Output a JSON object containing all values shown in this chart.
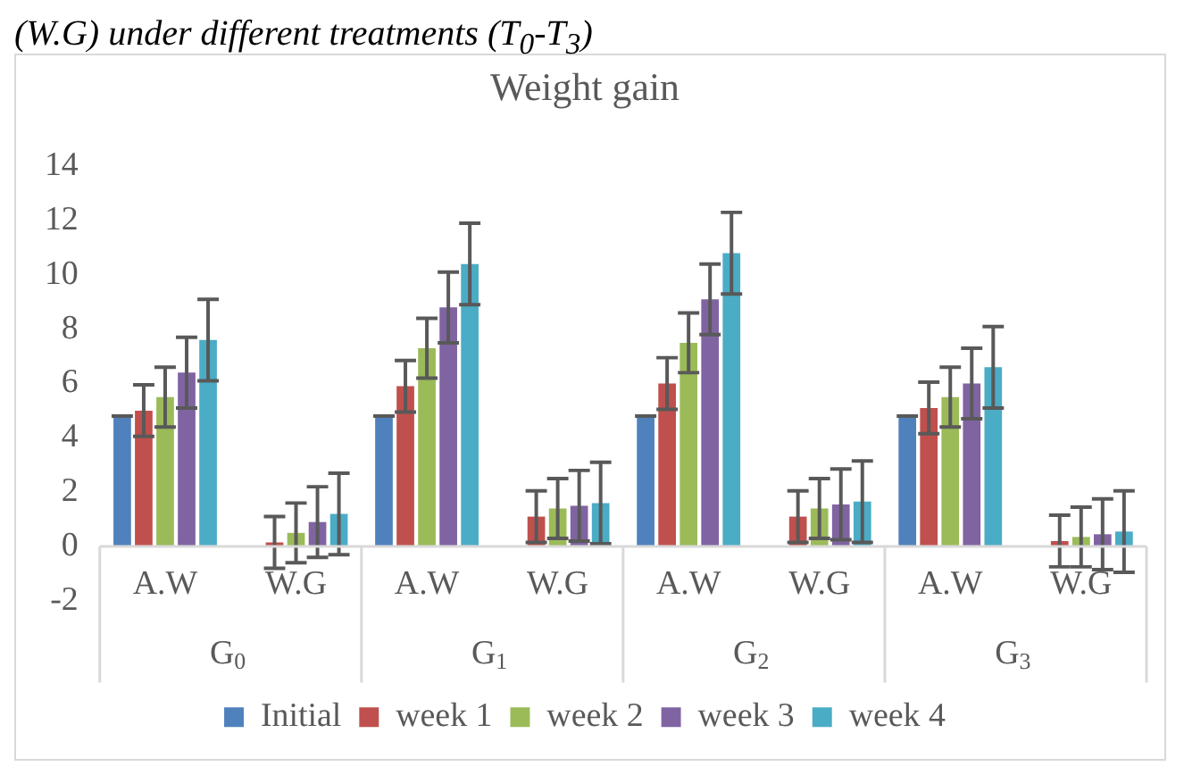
{
  "chart_data": {
    "type": "bar",
    "title": "Weight gain",
    "annotations": [
      "(W.G) under different treatments (T$_{0}$-T$_{3}$)",
      "G$_{0}$",
      "G$_{1}$",
      "G$_{2}$",
      "G$_{3}$"
    ],
    "categories": [
      "A.W",
      "W.G",
      "A.W",
      "W.G",
      "A.W",
      "W.G",
      "A.W",
      "W.G"
    ],
    "series": [
      {
        "name": "Initial",
        "color": "#4f81bd",
        "values": [
          4.8,
          0,
          4.8,
          0,
          4.8,
          0,
          4.8,
          0
        ],
        "errors": [
          0,
          null,
          0,
          null,
          0,
          null,
          0,
          null
        ]
      },
      {
        "name": "week 1",
        "color": "#c0504d",
        "values": [
          5.0,
          0.15,
          5.9,
          1.1,
          6.0,
          1.1,
          5.1,
          0.2
        ],
        "errors": [
          0.95,
          0.95,
          0.95,
          0.95,
          0.95,
          0.95,
          0.95,
          0.95
        ]
      },
      {
        "name": "week 2",
        "color": "#9bbb59",
        "values": [
          5.5,
          0.5,
          7.3,
          1.4,
          7.5,
          1.4,
          5.5,
          0.35
        ],
        "errors": [
          1.1,
          1.1,
          1.1,
          1.1,
          1.1,
          1.1,
          1.1,
          1.1
        ]
      },
      {
        "name": "week 3",
        "color": "#8064a2",
        "values": [
          6.4,
          0.9,
          8.8,
          1.5,
          9.1,
          1.55,
          6.0,
          0.45
        ],
        "errors": [
          1.3,
          1.3,
          1.3,
          1.3,
          1.3,
          1.3,
          1.3,
          1.3
        ]
      },
      {
        "name": "week 4",
        "color": "#4bacc6",
        "values": [
          7.6,
          1.2,
          10.4,
          1.6,
          10.8,
          1.65,
          6.6,
          0.55
        ],
        "errors": [
          1.5,
          1.5,
          1.5,
          1.5,
          1.5,
          1.5,
          1.5,
          1.5
        ]
      }
    ],
    "ylim": [
      -2,
      14
    ],
    "yticks": [
      -2,
      0,
      2,
      4,
      6,
      8,
      10,
      12,
      14
    ],
    "grid": false,
    "legend": "bottom"
  }
}
